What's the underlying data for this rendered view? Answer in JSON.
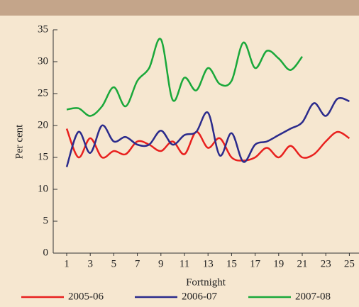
{
  "chart_data": {
    "type": "line",
    "y_label": "Per cent",
    "x_label": "Fortnight",
    "x": [
      1,
      2,
      3,
      4,
      5,
      6,
      7,
      8,
      9,
      10,
      11,
      12,
      13,
      14,
      15,
      16,
      17,
      18,
      19,
      20,
      21,
      22,
      23,
      24,
      25
    ],
    "xlim": [
      0,
      26
    ],
    "xticks": [
      1,
      3,
      5,
      7,
      9,
      11,
      13,
      15,
      17,
      19,
      21,
      23,
      25
    ],
    "ylim": [
      0,
      35
    ],
    "yticks": [
      0,
      5,
      10,
      15,
      20,
      25,
      30,
      35
    ],
    "series": [
      {
        "name": "2005-06",
        "color": "#e8201e",
        "values": [
          19.5,
          15,
          18,
          15,
          16,
          15.5,
          17.5,
          17,
          16,
          17.5,
          15.5,
          19,
          16.5,
          18,
          15,
          14.5,
          15,
          16.5,
          15,
          16.8,
          15,
          15.5,
          17.5,
          19,
          18
        ]
      },
      {
        "name": "2006-07",
        "color": "#2b2b8c",
        "values": [
          13.5,
          19,
          15.7,
          20,
          17.5,
          18.2,
          17,
          17,
          19.2,
          17,
          18.5,
          19,
          22,
          15.3,
          18.8,
          14.3,
          17,
          17.5,
          18.5,
          19.5,
          20.5,
          23.5,
          21.5,
          24.2,
          23.8
        ]
      },
      {
        "name": "2007-08",
        "color": "#1aa83a",
        "values": [
          22.5,
          22.7,
          21.5,
          23,
          26,
          23,
          27,
          29,
          33.5,
          24,
          27.5,
          25.5,
          29,
          26.5,
          27,
          33,
          29,
          31.7,
          30.5,
          28.7,
          30.8,
          null,
          null,
          null,
          null
        ]
      }
    ]
  }
}
